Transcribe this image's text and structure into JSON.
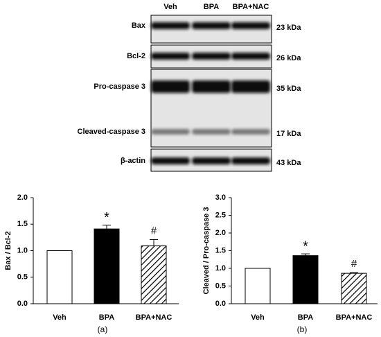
{
  "blot": {
    "lanes": [
      "Veh",
      "BPA",
      "BPA+NAC"
    ],
    "panels": [
      {
        "bands": [
          {
            "label": "Bax",
            "size": "23 kDa"
          }
        ]
      },
      {
        "bands": [
          {
            "label": "Bcl-2",
            "size": "26 kDa"
          }
        ]
      },
      {
        "bands": [
          {
            "label": "Pro-caspase 3",
            "size": "35 kDa"
          },
          {
            "label": "Cleaved-caspase 3",
            "size": "17 kDa"
          }
        ]
      },
      {
        "bands": [
          {
            "label": "β-actin",
            "size": "43 kDa"
          }
        ]
      }
    ]
  },
  "chart_data": [
    {
      "type": "bar",
      "ylabel": "Bax / Bcl-2",
      "caption": "(a)",
      "categories": [
        "Veh",
        "BPA",
        "BPA+NAC"
      ],
      "values": [
        1.0,
        1.41,
        1.09
      ],
      "errors": [
        0,
        0.07,
        0.12
      ],
      "significance": [
        null,
        "*",
        "#"
      ],
      "colors": [
        "#ffffff",
        "#000000",
        "#ffffff"
      ],
      "patterns": [
        "solid",
        "solid",
        "diagonal"
      ],
      "ylim": [
        0,
        2
      ],
      "yticks": [
        {
          "value": 0,
          "label": "0.0"
        },
        0.5,
        {
          "value": 1,
          "label": "1.0"
        },
        1.5,
        {
          "value": 2,
          "label": "2.0"
        }
      ]
    },
    {
      "type": "bar",
      "ylabel": "Cleaved / Pro-caspase 3",
      "caption": "(b)",
      "categories": [
        "Veh",
        "BPA",
        "BPA+NAC"
      ],
      "values": [
        1.0,
        1.36,
        0.86
      ],
      "errors": [
        0,
        0.05,
        0.02
      ],
      "significance": [
        null,
        "*",
        "#"
      ],
      "colors": [
        "#ffffff",
        "#000000",
        "#ffffff"
      ],
      "patterns": [
        "solid",
        "solid",
        "diagonal"
      ],
      "ylim": [
        0,
        3
      ],
      "yticks": [
        {
          "value": 0,
          "label": "0.0"
        },
        0.5,
        {
          "value": 1,
          "label": "1.0"
        },
        1.5,
        {
          "value": 2,
          "label": "2.0"
        },
        2.5,
        {
          "value": 3,
          "label": "3.0"
        }
      ]
    }
  ]
}
